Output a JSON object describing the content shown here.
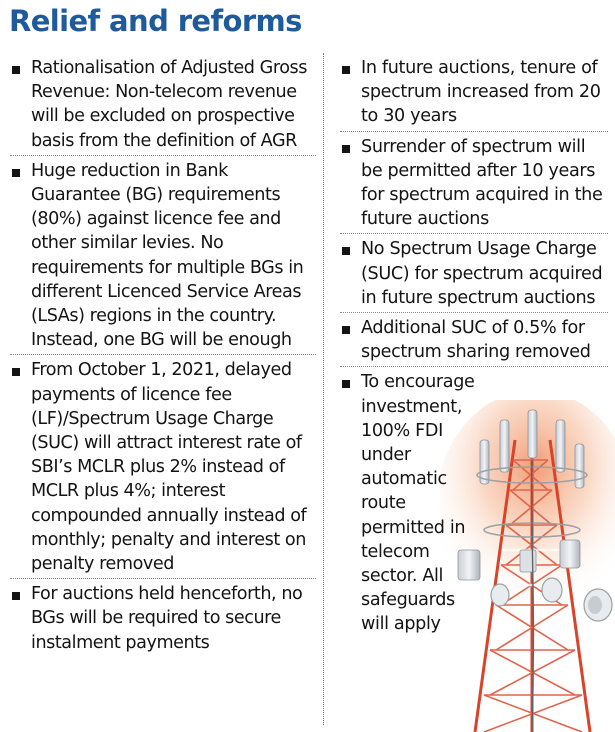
{
  "header": {
    "title": "Relief and reforms"
  },
  "left_column": {
    "items": [
      "Rationalisation of Adjusted Gross Revenue: Non-telecom revenue will be excluded on prospective basis from the definition of AGR",
      "Huge reduction in Bank Guarantee (BG) requirements (80%) against licence fee and other similar levies. No requirements for multiple BGs in different Licenced Service Areas (LSAs) regions in the country. Instead, one BG will be enough",
      "From October 1, 2021, delayed payments of licence fee (LF)/Spectrum Usage Charge (SUC) will attract interest rate of SBI’s MCLR plus 2% instead of MCLR plus 4%; interest compounded annually instead of monthly; penalty and interest on penalty removed",
      "For auctions held henceforth, no BGs will be required to secure instalment payments"
    ]
  },
  "right_column": {
    "items": [
      "In future auctions, tenure of spectrum increased from 20 to 30 years",
      "Surrender of spectrum will be permitted after 10 years for spectrum acquired in the future auctions",
      "No Spectrum Usage Charge (SUC) for spectrum acquired in future spectrum auctions",
      "Additional SUC of 0.5% for spectrum sharing removed",
      "To encourage investment, 100% FDI under automatic route permitted in telecom sector. All safeguards will apply"
    ]
  },
  "colors": {
    "title": "#1f5a9c",
    "tower_red": "#d8432a",
    "glow": "#f4a37a"
  },
  "icons": [
    "bullet-square-icon",
    "telecom-tower-icon"
  ]
}
